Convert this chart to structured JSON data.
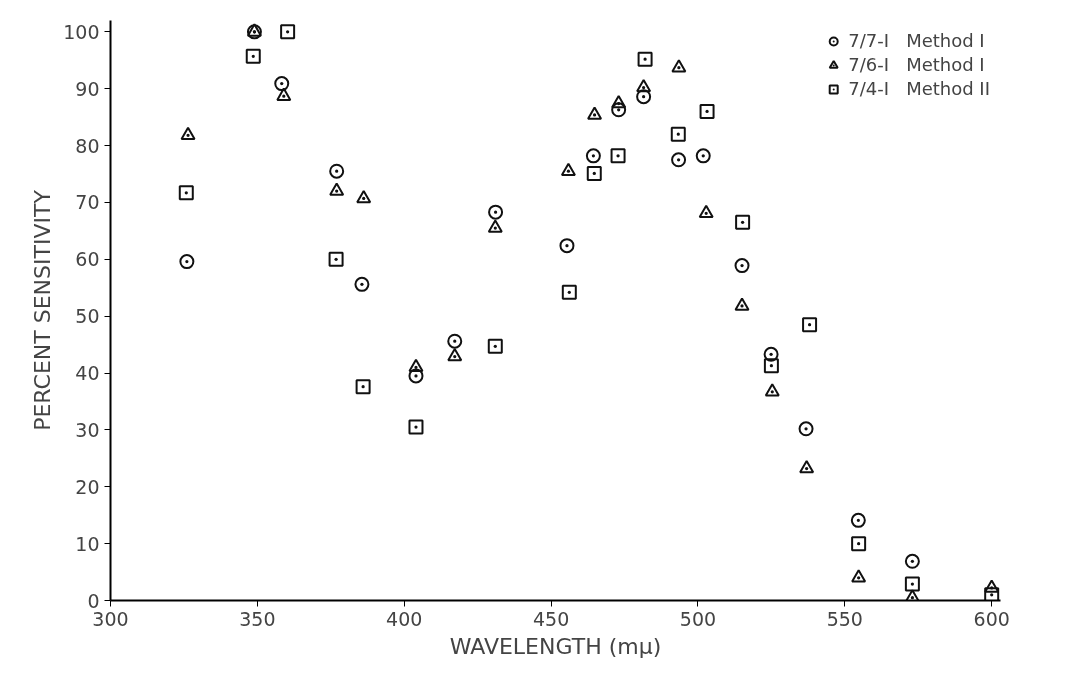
{
  "chart_data": {
    "type": "scatter",
    "xlabel": "WAVELENGTH (mμ)",
    "ylabel": "PERCENT SENSITIVITY",
    "xlim": [
      300,
      603
    ],
    "xticks": [
      300,
      350,
      400,
      450,
      500,
      550,
      600
    ],
    "ylim": [
      0,
      102
    ],
    "yticks": [
      0,
      10,
      20,
      30,
      40,
      50,
      60,
      70,
      80,
      90,
      100
    ],
    "grid": false,
    "legend": "top right",
    "series": [
      {
        "name": "7/7-I   Method I",
        "color": "#111111",
        "marker": "circle",
        "x": [
          326,
          349,
          358.3,
          377,
          385.6,
          404,
          417.2,
          431.1,
          455.4,
          464.4,
          473,
          481.5,
          493.4,
          501.8,
          515,
          524.9,
          536.8,
          554.6,
          573
        ],
        "values": [
          59.6,
          100,
          90.9,
          75.5,
          55.6,
          39.5,
          45.6,
          68.3,
          62.4,
          78.2,
          86.3,
          88.6,
          77.5,
          78.2,
          58.9,
          43.3,
          30.2,
          14.1,
          6.9
        ]
      },
      {
        "name": "7/6-I   Method I",
        "color": "#111111",
        "marker": "triangle",
        "x": [
          326.4,
          349,
          359,
          377,
          386.2,
          404,
          417.2,
          431,
          455.9,
          464.8,
          473,
          481.5,
          493.5,
          502.8,
          515,
          525.3,
          537,
          554.7,
          573,
          600
        ],
        "values": [
          81.8,
          100,
          88.7,
          72.0,
          70.7,
          41.0,
          42.9,
          65.5,
          75.5,
          85.4,
          87.4,
          90.2,
          93.7,
          68.1,
          51.8,
          36.7,
          23.2,
          4.0,
          0.5,
          2.2
        ]
      },
      {
        "name": "7/4-I   Method II",
        "color": "#111111",
        "marker": "square",
        "x": [
          325.8,
          348.6,
          360.3,
          376.8,
          386,
          404,
          431,
          456.2,
          464.7,
          472.8,
          482,
          493.3,
          503.1,
          515.2,
          525,
          538,
          554.7,
          573,
          600
        ],
        "values": [
          71.7,
          95.7,
          100,
          60.0,
          37.6,
          30.5,
          44.7,
          54.2,
          75.1,
          78.2,
          95.2,
          82.0,
          86.0,
          66.5,
          41.3,
          48.5,
          10.0,
          2.9,
          1.0
        ]
      }
    ]
  }
}
